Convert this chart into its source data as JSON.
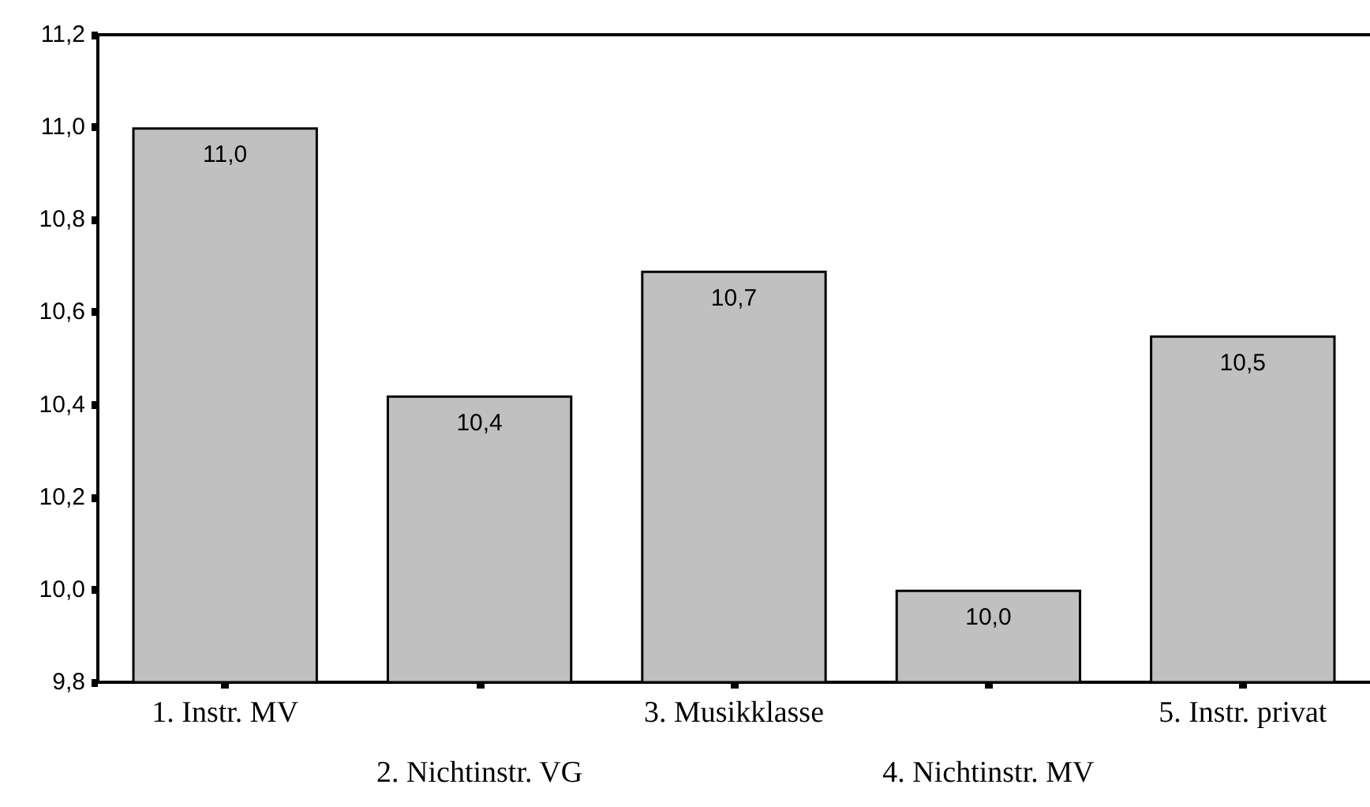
{
  "chart_data": {
    "type": "bar",
    "categories": [
      "1. Instr. MV",
      "2. Nichtinstr. VG",
      "3. Musikklasse",
      "4. Nichtinstr. MV",
      "5. Instr. privat"
    ],
    "values": [
      11.0,
      10.42,
      10.69,
      10.0,
      10.55
    ],
    "value_labels": [
      "11,0",
      "10,4",
      "10,7",
      "10,0",
      "10,5"
    ],
    "color": "#c0c0c0",
    "ylim": [
      9.8,
      11.2
    ],
    "yticks": [
      {
        "value": 9.8,
        "label": "9,8"
      },
      {
        "value": 10.0,
        "label": "10,0"
      },
      {
        "value": 10.2,
        "label": "10,2"
      },
      {
        "value": 10.4,
        "label": "10,4"
      },
      {
        "value": 10.6,
        "label": "10,6"
      },
      {
        "value": 10.8,
        "label": "10,8"
      },
      {
        "value": 11.0,
        "label": "11,0"
      },
      {
        "value": 11.2,
        "label": "11,2"
      }
    ],
    "grid": false
  }
}
